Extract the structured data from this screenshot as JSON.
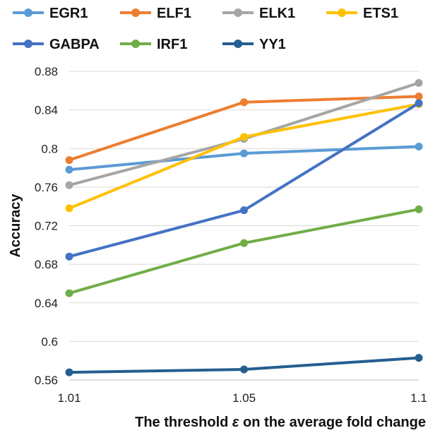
{
  "chart_data": {
    "type": "line",
    "x": [
      "1.01",
      "1.05",
      "1.1"
    ],
    "xlabel_prefix": "The threshold ",
    "xlabel_symbol": "ε",
    "xlabel_suffix": " on the average fold change",
    "ylabel": "Accuracy",
    "ylim": [
      0.56,
      0.88
    ],
    "yticks": [
      "0.56",
      "0.6",
      "0.64",
      "0.68",
      "0.72",
      "0.76",
      "0.8",
      "0.84",
      "0.88"
    ],
    "grid": "horizontal",
    "legend_position": "top",
    "series": [
      {
        "name": "EGR1",
        "color": "#5B9BD5",
        "values": [
          0.778,
          0.795,
          0.802
        ]
      },
      {
        "name": "ELF1",
        "color": "#ED7D31",
        "values": [
          0.788,
          0.848,
          0.854
        ]
      },
      {
        "name": "ELK1",
        "color": "#A5A5A5",
        "values": [
          0.762,
          0.81,
          0.868
        ]
      },
      {
        "name": "ETS1",
        "color": "#FFC000",
        "values": [
          0.738,
          0.812,
          0.846
        ]
      },
      {
        "name": "GABPA",
        "color": "#4472C4",
        "values": [
          0.688,
          0.736,
          0.847
        ]
      },
      {
        "name": "IRF1",
        "color": "#70AD47",
        "values": [
          0.65,
          0.702,
          0.737
        ]
      },
      {
        "name": "YY1",
        "color": "#255E91",
        "values": [
          0.568,
          0.571,
          0.583
        ]
      }
    ]
  }
}
